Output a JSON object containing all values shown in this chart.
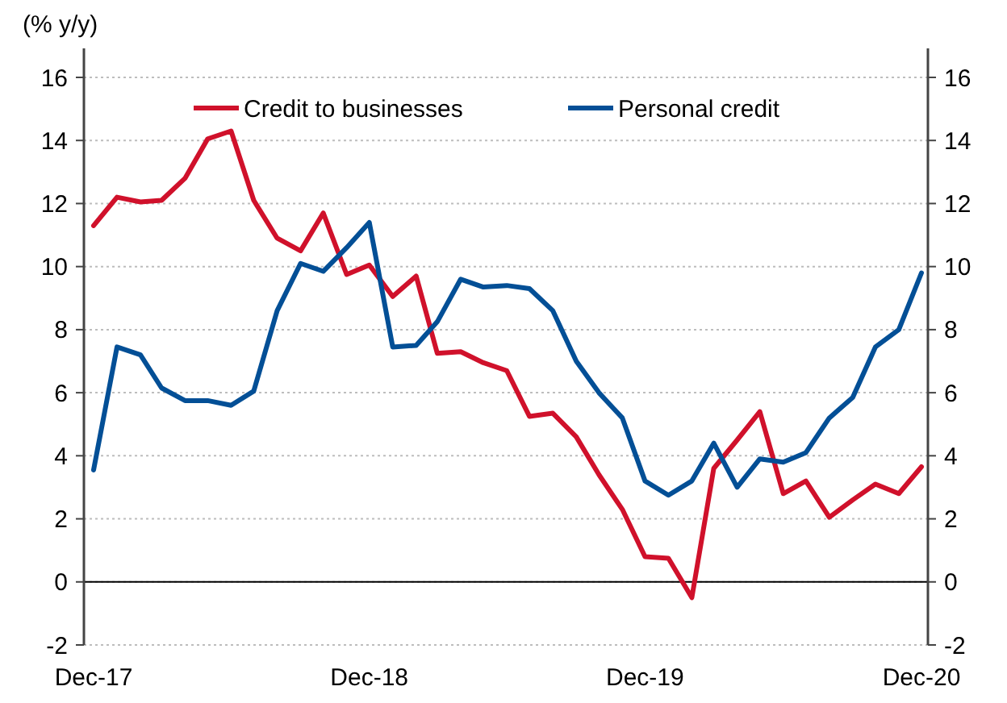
{
  "chart_data": {
    "type": "line",
    "ylabel": "(% y/y)",
    "x": [
      "2017-12",
      "2018-01",
      "2018-02",
      "2018-03",
      "2018-04",
      "2018-05",
      "2018-06",
      "2018-07",
      "2018-08",
      "2018-09",
      "2018-10",
      "2018-11",
      "2018-12",
      "2019-01",
      "2019-02",
      "2019-03",
      "2019-04",
      "2019-05",
      "2019-06",
      "2019-07",
      "2019-08",
      "2019-09",
      "2019-10",
      "2019-11",
      "2019-12",
      "2020-01",
      "2020-02",
      "2020-03",
      "2020-04",
      "2020-05",
      "2020-06",
      "2020-07",
      "2020-08",
      "2020-09",
      "2020-10",
      "2020-11",
      "2020-12"
    ],
    "series": [
      {
        "name": "Credit to businesses",
        "color": "#d0112b",
        "values": [
          11.3,
          12.2,
          12.05,
          12.1,
          12.8,
          14.05,
          14.3,
          12.1,
          10.9,
          10.5,
          11.7,
          9.75,
          10.05,
          9.05,
          9.7,
          7.25,
          7.3,
          6.95,
          6.7,
          5.25,
          5.35,
          4.6,
          3.4,
          2.3,
          0.8,
          0.75,
          -0.5,
          3.6,
          4.5,
          5.4,
          2.8,
          3.2,
          2.05,
          2.6,
          3.1,
          2.8,
          3.65
        ]
      },
      {
        "name": "Personal credit",
        "color": "#034f96",
        "values": [
          3.55,
          7.45,
          7.2,
          6.15,
          5.75,
          5.75,
          5.6,
          6.05,
          8.6,
          10.1,
          9.85,
          10.6,
          11.4,
          7.45,
          7.5,
          8.25,
          9.6,
          9.35,
          9.4,
          9.3,
          8.6,
          7.0,
          6.0,
          5.2,
          3.2,
          2.75,
          3.2,
          4.4,
          3.0,
          3.9,
          3.8,
          4.1,
          5.2,
          5.85,
          7.45,
          8.0,
          9.8
        ]
      }
    ],
    "xlim": [
      "2017-12",
      "2020-12"
    ],
    "xticks": [
      {
        "value": "2017-12",
        "label": "Dec-17"
      },
      {
        "value": "2018-12",
        "label": "Dec-18"
      },
      {
        "value": "2019-12",
        "label": "Dec-19"
      },
      {
        "value": "2020-12",
        "label": "Dec-20"
      }
    ],
    "ylim": [
      -2,
      16
    ],
    "yticks": [
      -2,
      0,
      2,
      4,
      6,
      8,
      10,
      12,
      14,
      16
    ],
    "y2lim": [
      -2,
      16
    ],
    "y2ticks": [
      -2,
      0,
      2,
      4,
      6,
      8,
      10,
      12,
      14,
      16
    ],
    "ref_lines": [
      {
        "axis": "y",
        "value": 0,
        "color": "#000000",
        "line_style": "solid"
      }
    ],
    "grid": "y",
    "legend": "top",
    "line_style": "solid"
  }
}
